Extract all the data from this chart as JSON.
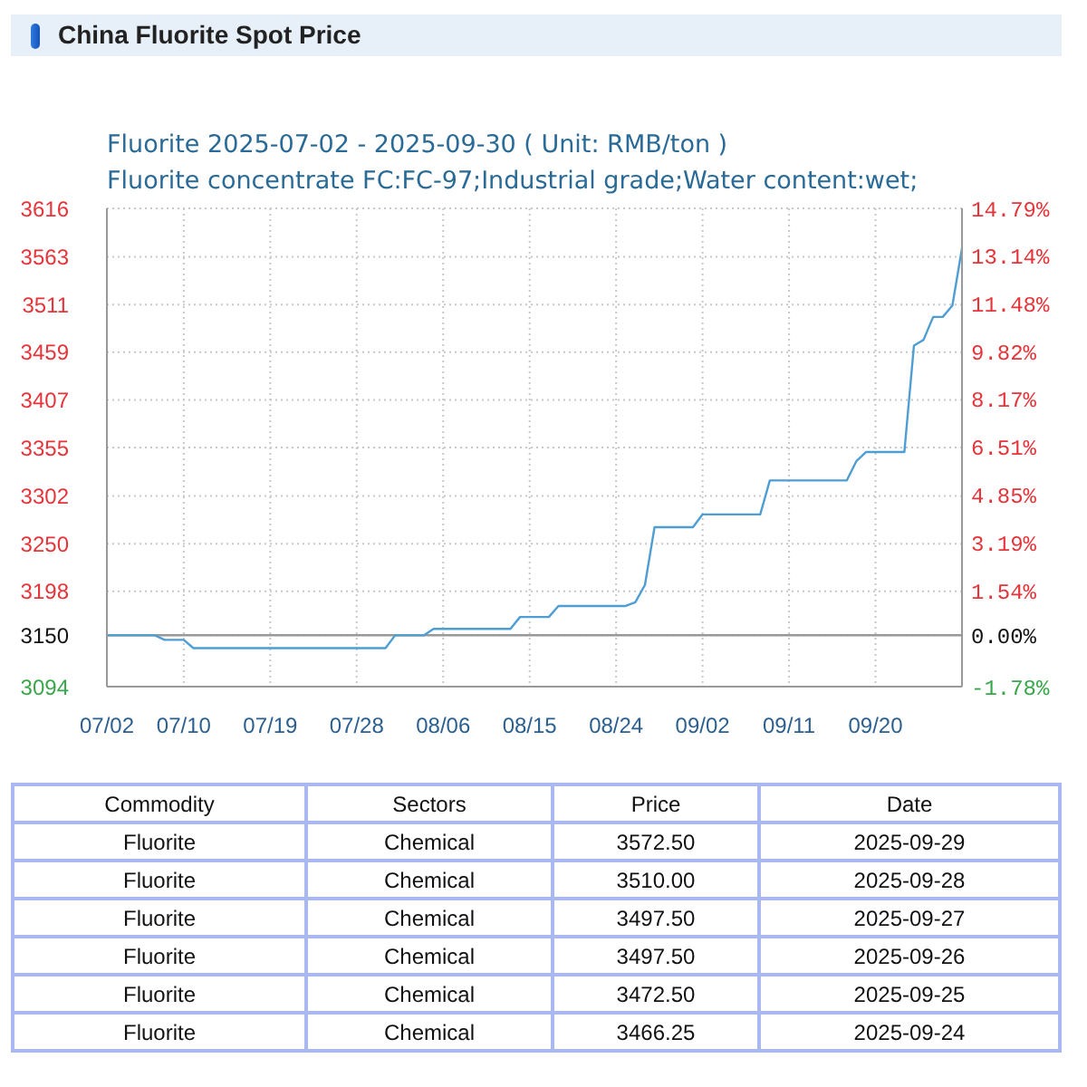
{
  "chart_data": {
    "type": "line",
    "title": "China Fluorite Spot Price",
    "subtitle": "Fluorite 2025-07-02 - 2025-09-30 ( Unit: RMB/ton )",
    "annotations": [
      "Fluorite concentrate FC:FC-97;Industrial grade;Water content:wet;",
      "Commodity",
      "Sectors",
      "Price",
      "Date",
      "Fluorite",
      "Chemical",
      "3572.50",
      "2025-09-29",
      "Fluorite",
      "Chemical",
      "3510.00",
      "2025-09-28",
      "Fluorite",
      "Chemical",
      "3497.50",
      "2025-09-27",
      "Fluorite",
      "Chemical",
      "3497.50",
      "2025-09-26",
      "Fluorite",
      "Chemical",
      "3472.50",
      "2025-09-25",
      "Fluorite",
      "Chemical",
      "3466.25",
      "2025-09-24"
    ],
    "x": [
      "2025-07-02",
      "2025-07-07",
      "2025-07-08",
      "2025-07-10",
      "2025-07-11",
      "2025-07-31",
      "2025-08-01",
      "2025-08-04",
      "2025-08-05",
      "2025-08-13",
      "2025-08-14",
      "2025-08-17",
      "2025-08-18",
      "2025-08-25",
      "2025-08-26",
      "2025-08-27",
      "2025-08-28",
      "2025-09-01",
      "2025-09-02",
      "2025-09-08",
      "2025-09-09",
      "2025-09-17",
      "2025-09-18",
      "2025-09-19",
      "2025-09-23",
      "2025-09-24",
      "2025-09-25",
      "2025-09-26",
      "2025-09-27",
      "2025-09-28",
      "2025-09-29"
    ],
    "values": [
      3150,
      3150,
      3145,
      3145,
      3136,
      3136,
      3150,
      3150,
      3157,
      3157,
      3170,
      3170,
      3182,
      3182,
      3186,
      3205,
      3268,
      3268,
      3282,
      3282,
      3319,
      3319,
      3340,
      3350,
      3350,
      3466.25,
      3472.5,
      3497.5,
      3497.5,
      3510,
      3572.5
    ],
    "color": "#4e9ed4",
    "xlim": [
      "2025-07-02",
      "2025-09-29"
    ],
    "xticks": [
      {
        "value": "2025-07-02",
        "label": "07/02"
      },
      {
        "value": "2025-07-10",
        "label": "07/10"
      },
      {
        "value": "2025-07-19",
        "label": "07/19"
      },
      {
        "value": "2025-07-28",
        "label": "07/28"
      },
      {
        "value": "2025-08-06",
        "label": "08/06"
      },
      {
        "value": "2025-08-15",
        "label": "08/15"
      },
      {
        "value": "2025-08-24",
        "label": "08/24"
      },
      {
        "value": "2025-09-02",
        "label": "09/02"
      },
      {
        "value": "2025-09-11",
        "label": "09/11"
      },
      {
        "value": "2025-09-20",
        "label": "09/20"
      }
    ],
    "ylim": [
      3094,
      3616
    ],
    "yticks": [
      3094,
      3150,
      3198,
      3250,
      3302,
      3355,
      3407,
      3459,
      3511,
      3563,
      3616
    ],
    "y2lim": [
      -1.78,
      14.79
    ],
    "y2ticks": [
      {
        "value": -1.78,
        "label": "-1.78%"
      },
      {
        "value": 0,
        "label": "0.00%"
      },
      {
        "value": 1.54,
        "label": "1.54%"
      },
      {
        "value": 3.19,
        "label": "3.19%"
      },
      {
        "value": 4.85,
        "label": "4.85%"
      },
      {
        "value": 6.51,
        "label": "6.51%"
      },
      {
        "value": 8.17,
        "label": "8.17%"
      },
      {
        "value": 9.82,
        "label": "9.82%"
      },
      {
        "value": 11.48,
        "label": "11.48%"
      },
      {
        "value": 13.14,
        "label": "13.14%"
      },
      {
        "value": 14.79,
        "label": "14.79%"
      }
    ],
    "ref_lines": [
      {
        "axis": "y2",
        "value": 0,
        "color": "#999999"
      }
    ],
    "grid": true
  }
}
